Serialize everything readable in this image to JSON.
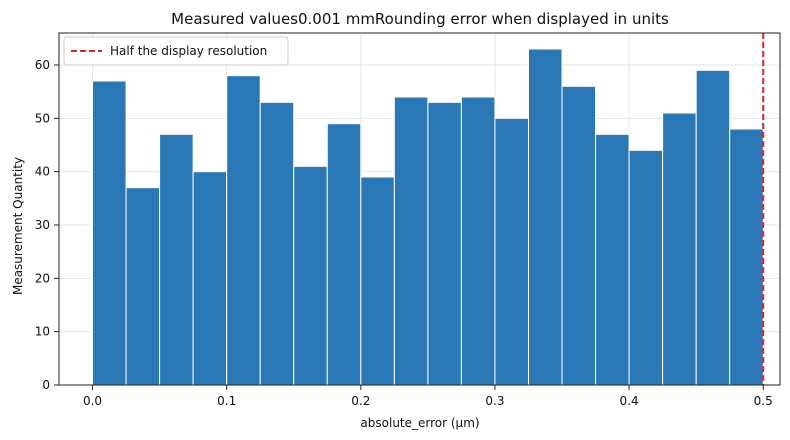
{
  "chart_data": {
    "type": "bar",
    "title": "Measured values0.001 mmRounding error when displayed in units",
    "xlabel": "absolute_error (μm)",
    "ylabel": "Measurement Quantity",
    "xlim": [
      -0.025,
      0.5125
    ],
    "ylim": [
      0,
      66
    ],
    "xticks": [
      0.0,
      0.1,
      0.2,
      0.3,
      0.4,
      0.5
    ],
    "xtick_labels": [
      "0.0",
      "0.1",
      "0.2",
      "0.3",
      "0.4",
      "0.5"
    ],
    "yticks": [
      0,
      10,
      20,
      30,
      40,
      50,
      60
    ],
    "ytick_labels": [
      "0",
      "10",
      "20",
      "30",
      "40",
      "50",
      "60"
    ],
    "grid": true,
    "bin_edges": [
      0.0,
      0.025,
      0.05,
      0.075,
      0.1,
      0.125,
      0.15,
      0.175,
      0.2,
      0.225,
      0.25,
      0.275,
      0.3,
      0.325,
      0.35,
      0.375,
      0.4,
      0.425,
      0.45,
      0.475,
      0.5
    ],
    "values": [
      57,
      37,
      47,
      40,
      58,
      53,
      41,
      49,
      39,
      54,
      53,
      54,
      50,
      63,
      56,
      47,
      44,
      51,
      59,
      48
    ],
    "bar_color": "#2b78b6",
    "reference_line": {
      "x": 0.5,
      "label": "Half the display resolution",
      "color": "#d62728",
      "style": "dashed"
    },
    "legend_position": "top-left"
  }
}
